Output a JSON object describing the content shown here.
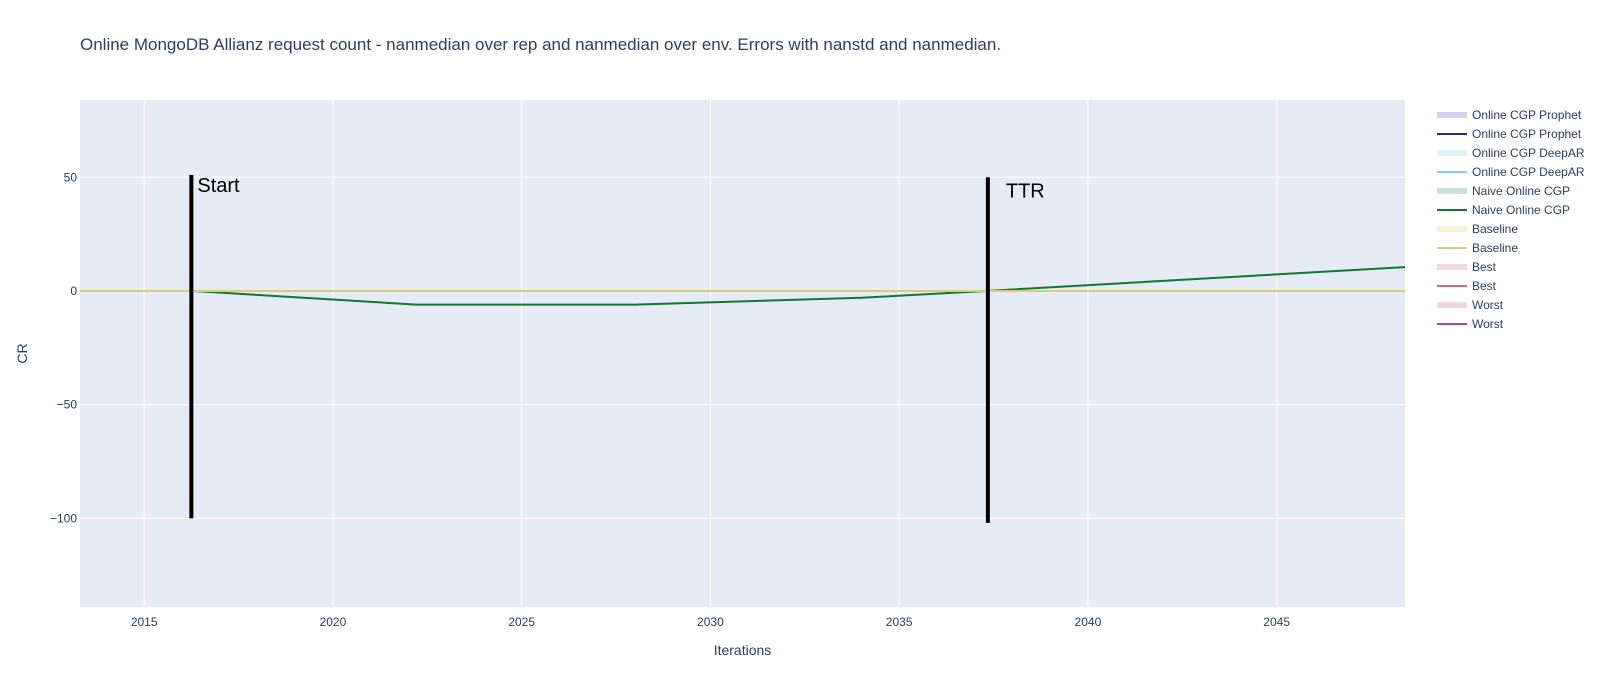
{
  "chart_data": {
    "type": "line",
    "title": "Online MongoDB Allianz request count - nanmedian over rep and nanmedian over env. Errors with nanstd and nanmedian.",
    "xlabel": "Iterations",
    "ylabel": "CR",
    "xlim": [
      2013.3,
      2048.4
    ],
    "ylim": [
      -139,
      84
    ],
    "x_ticks": [
      2015,
      2020,
      2025,
      2030,
      2035,
      2040,
      2045
    ],
    "y_ticks": [
      50,
      0,
      -50,
      -100
    ],
    "y_tick_labels": [
      "50",
      "0",
      "−50",
      "−100"
    ],
    "grid": true,
    "plot_background": "#e5ecf6",
    "legend_position": "right",
    "series": [
      {
        "name": "Online CGP Prophet",
        "kind": "band",
        "color": "#d5d0ea",
        "x": [],
        "y": []
      },
      {
        "name": "Online CGP Prophet",
        "kind": "line",
        "color": "#332288",
        "x": [],
        "y": []
      },
      {
        "name": "Online CGP DeepAR",
        "kind": "band",
        "color": "#ddf2f9",
        "x": [],
        "y": []
      },
      {
        "name": "Online CGP DeepAR",
        "kind": "line",
        "color": "#88ccee",
        "x": [],
        "y": []
      },
      {
        "name": "Naive Online CGP",
        "kind": "band",
        "color": "#c8e3d0",
        "x": [
          2013.3,
          2016.3,
          2022.2,
          2028.0,
          2034.0,
          2037.3,
          2048.4
        ],
        "y": [
          0,
          0,
          -6,
          -6,
          -3,
          0,
          10.5
        ]
      },
      {
        "name": "Naive Online CGP",
        "kind": "line",
        "color": "#117733",
        "x": [
          2013.3,
          2016.3,
          2022.2,
          2028.0,
          2034.0,
          2037.3,
          2048.4
        ],
        "y": [
          0,
          0,
          -6,
          -6,
          -3,
          0,
          10.5
        ]
      },
      {
        "name": "Baseline",
        "kind": "band",
        "color": "#f6f1da",
        "x": [
          2013.3,
          2048.4
        ],
        "y": [
          0,
          0
        ]
      },
      {
        "name": "Baseline",
        "kind": "line",
        "color": "#ddcc77",
        "x": [
          2013.3,
          2048.4
        ],
        "y": [
          0,
          0
        ]
      },
      {
        "name": "Best",
        "kind": "band",
        "color": "#f4d9de",
        "x": [],
        "y": []
      },
      {
        "name": "Best",
        "kind": "line",
        "color": "#cc6677",
        "x": [],
        "y": []
      },
      {
        "name": "Worst",
        "kind": "band",
        "color": "#efd6e6",
        "x": [],
        "y": []
      },
      {
        "name": "Worst",
        "kind": "line",
        "color": "#aa4499",
        "x": [],
        "y": []
      }
    ],
    "vertical_markers": [
      {
        "label": "Start",
        "x": 2016.25,
        "y_top": 51,
        "y_bottom": -100,
        "color": "#000000"
      },
      {
        "label": "TTR",
        "x": 2037.35,
        "y_top": 50,
        "y_bottom": -102,
        "color": "#000000"
      }
    ]
  }
}
